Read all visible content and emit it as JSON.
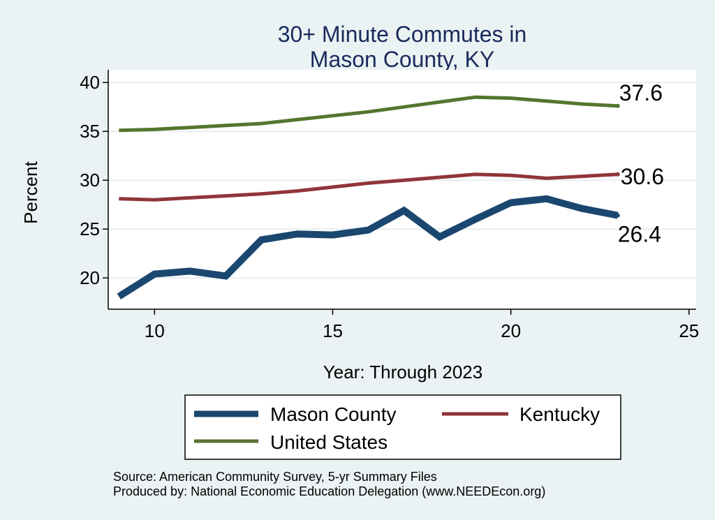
{
  "chart_data": {
    "type": "line",
    "title": [
      "30+ Minute Commutes in",
      "Mason County, KY"
    ],
    "xlabel": "Year: Through 2023",
    "ylabel": "Percent",
    "xlim": [
      8.7,
      25.2
    ],
    "ylim": [
      16.8,
      41.3
    ],
    "xticks": [
      10,
      15,
      20,
      25
    ],
    "yticks": [
      20,
      25,
      30,
      35,
      40
    ],
    "grid": true,
    "legend_position": "bottom",
    "series": [
      {
        "name": "Mason County",
        "color": "#1a476f",
        "x": [
          9,
          10,
          11,
          12,
          13,
          14,
          15,
          16,
          17,
          18,
          19,
          20,
          21,
          22,
          23
        ],
        "values": [
          18.1,
          20.4,
          20.7,
          20.2,
          23.9,
          24.5,
          24.4,
          24.9,
          26.9,
          24.2,
          26.0,
          27.7,
          28.1,
          27.1,
          26.4
        ],
        "end_label": "26.4"
      },
      {
        "name": "Kentucky",
        "color": "#90353b",
        "x": [
          9,
          10,
          11,
          12,
          13,
          14,
          15,
          16,
          17,
          18,
          19,
          20,
          21,
          22,
          23
        ],
        "values": [
          28.1,
          28.0,
          28.2,
          28.4,
          28.6,
          28.9,
          29.3,
          29.7,
          30.0,
          30.3,
          30.6,
          30.5,
          30.2,
          30.4,
          30.6
        ],
        "end_label": "30.6"
      },
      {
        "name": "United States",
        "color": "#55752f",
        "x": [
          9,
          10,
          11,
          12,
          13,
          14,
          15,
          16,
          17,
          18,
          19,
          20,
          21,
          22,
          23
        ],
        "values": [
          35.1,
          35.2,
          35.4,
          35.6,
          35.8,
          36.2,
          36.6,
          37.0,
          37.5,
          38.0,
          38.5,
          38.4,
          38.1,
          37.8,
          37.6
        ],
        "end_label": "37.6"
      }
    ]
  },
  "notes": {
    "source": "Source: American Community Survey, 5-yr Summary Files",
    "produced": "Produced by: National Economic Education Delegation (www.NEEDEcon.org)"
  }
}
